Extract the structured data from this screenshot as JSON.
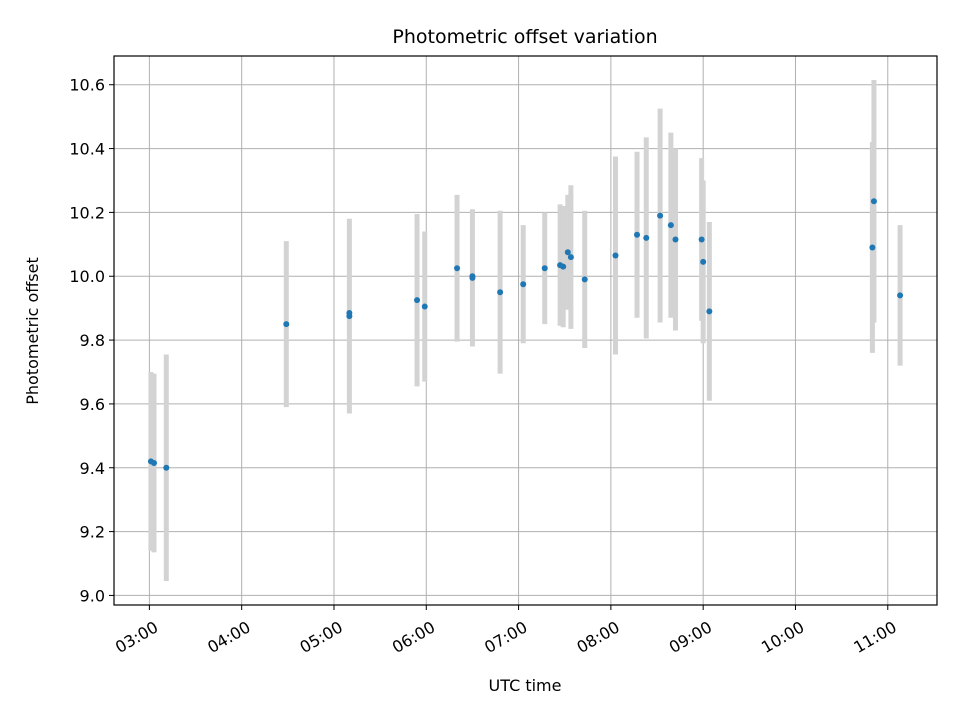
{
  "chart_data": {
    "type": "scatter",
    "title": "Photometric offset variation",
    "xlabel": "UTC time",
    "ylabel": "Photometric offset",
    "x_tick_labels": [
      "03:00",
      "04:00",
      "05:00",
      "06:00",
      "07:00",
      "08:00",
      "09:00",
      "10:00",
      "11:00"
    ],
    "y_tick_labels": [
      "9.0",
      "9.2",
      "9.4",
      "9.6",
      "9.8",
      "10.0",
      "10.2",
      "10.4",
      "10.6"
    ],
    "xlim": [
      "02:37",
      "11:32"
    ],
    "ylim": [
      8.97,
      10.69
    ],
    "grid": true,
    "colors": {
      "point": "#1f77b4",
      "errorbar": "#d3d3d3",
      "grid": "#b0b0b0"
    },
    "series": [
      {
        "points": [
          {
            "x": "03:01",
            "y": 9.42,
            "err": 0.28
          },
          {
            "x": "03:03",
            "y": 9.415,
            "err": 0.28
          },
          {
            "x": "03:11",
            "y": 9.4,
            "err": 0.355
          },
          {
            "x": "04:29",
            "y": 9.85,
            "err": 0.26
          },
          {
            "x": "05:10",
            "y": 9.875,
            "err": 0.305
          },
          {
            "x": "05:10",
            "y": 9.885,
            "err": 0.0
          },
          {
            "x": "05:54",
            "y": 9.925,
            "err": 0.27
          },
          {
            "x": "05:59",
            "y": 9.905,
            "err": 0.235
          },
          {
            "x": "06:20",
            "y": 10.025,
            "err": 0.23
          },
          {
            "x": "06:30",
            "y": 9.995,
            "err": 0.215
          },
          {
            "x": "06:30",
            "y": 10.0,
            "err": 0.0
          },
          {
            "x": "06:48",
            "y": 9.95,
            "err": 0.255
          },
          {
            "x": "07:03",
            "y": 9.975,
            "err": 0.185
          },
          {
            "x": "07:17",
            "y": 10.025,
            "err": 0.175
          },
          {
            "x": "07:27",
            "y": 10.035,
            "err": 0.19
          },
          {
            "x": "07:29",
            "y": 10.03,
            "err": 0.19
          },
          {
            "x": "07:32",
            "y": 10.075,
            "err": 0.18
          },
          {
            "x": "07:34",
            "y": 10.06,
            "err": 0.225
          },
          {
            "x": "07:43",
            "y": 9.99,
            "err": 0.215
          },
          {
            "x": "08:03",
            "y": 10.065,
            "err": 0.31
          },
          {
            "x": "08:17",
            "y": 10.13,
            "err": 0.26
          },
          {
            "x": "08:23",
            "y": 10.12,
            "err": 0.315
          },
          {
            "x": "08:32",
            "y": 10.19,
            "err": 0.335
          },
          {
            "x": "08:39",
            "y": 10.16,
            "err": 0.29
          },
          {
            "x": "08:42",
            "y": 10.115,
            "err": 0.285
          },
          {
            "x": "08:59",
            "y": 10.115,
            "err": 0.255
          },
          {
            "x": "09:00",
            "y": 10.045,
            "err": 0.255
          },
          {
            "x": "09:04",
            "y": 9.89,
            "err": 0.28
          },
          {
            "x": "10:50",
            "y": 10.09,
            "err": 0.33
          },
          {
            "x": "10:51",
            "y": 10.235,
            "err": 0.38
          },
          {
            "x": "11:08",
            "y": 9.94,
            "err": 0.22
          }
        ]
      }
    ]
  }
}
